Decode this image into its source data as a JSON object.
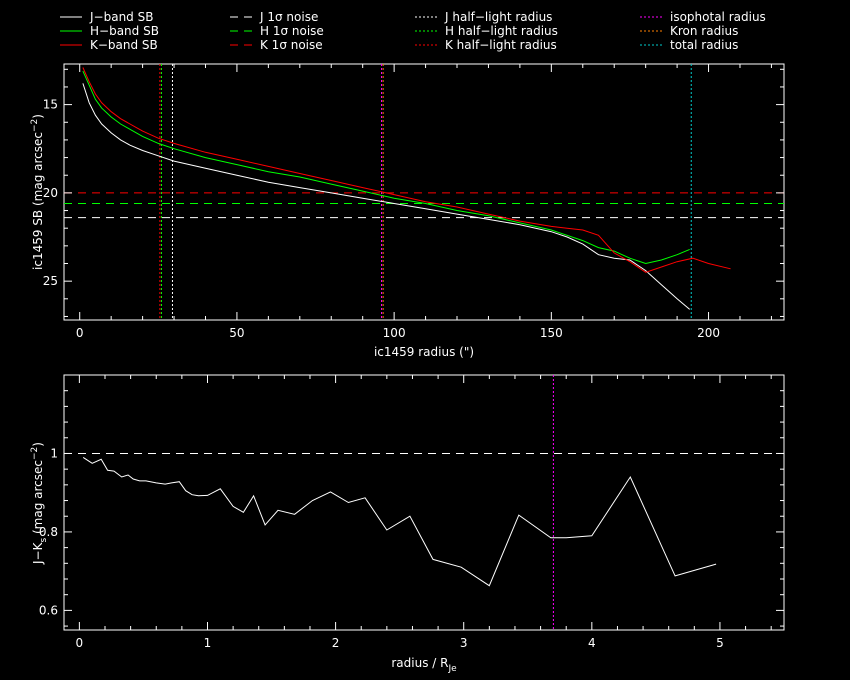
{
  "legend": [
    {
      "label": "J−band SB",
      "color": "#ffffff",
      "dash": "solid"
    },
    {
      "label": "H−band SB",
      "color": "#00ff00",
      "dash": "solid"
    },
    {
      "label": "K−band SB",
      "color": "#ff0000",
      "dash": "solid"
    },
    {
      "label": "J 1σ noise",
      "color": "#ffffff",
      "dash": "dashed"
    },
    {
      "label": "H 1σ noise",
      "color": "#00ff00",
      "dash": "dashed"
    },
    {
      "label": "K 1σ noise",
      "color": "#ff0000",
      "dash": "dashed"
    },
    {
      "label": "J half−light radius",
      "color": "#ffffff",
      "dash": "dotted"
    },
    {
      "label": "H half−light radius",
      "color": "#00ff00",
      "dash": "dotted"
    },
    {
      "label": "K half−light radius",
      "color": "#ff0000",
      "dash": "dotted"
    },
    {
      "label": "isophotal radius",
      "color": "#ff00ff",
      "dash": "dotted"
    },
    {
      "label": "Kron radius",
      "color": "#ff8000",
      "dash": "dotted"
    },
    {
      "label": "total radius",
      "color": "#00cccc",
      "dash": "dotted"
    }
  ],
  "chart_data": [
    {
      "type": "line",
      "xlabel": "ic1459 radius (\")",
      "ylabel_main": "ic1459 SB (mag arcsec",
      "ylabel_sup": "−2",
      "ylabel_tail": ")",
      "xlim": [
        -5,
        224
      ],
      "ylim": [
        27.2,
        12.7
      ],
      "xticks": [
        0,
        50,
        100,
        150,
        200
      ],
      "yticks": [
        15,
        20,
        25
      ],
      "series": [
        {
          "name": "J−band SB",
          "color": "#ffffff",
          "x": [
            1,
            3,
            5,
            7,
            10,
            13,
            16,
            20,
            25,
            30,
            40,
            50,
            60,
            70,
            80,
            90,
            100,
            110,
            120,
            130,
            140,
            150,
            155,
            160,
            165,
            170,
            175,
            180,
            185,
            190,
            194
          ],
          "y": [
            13.8,
            14.9,
            15.6,
            16.1,
            16.6,
            17.0,
            17.3,
            17.6,
            17.9,
            18.2,
            18.6,
            19.0,
            19.4,
            19.7,
            20.0,
            20.3,
            20.6,
            20.9,
            21.2,
            21.5,
            21.8,
            22.2,
            22.5,
            22.9,
            23.5,
            23.7,
            23.8,
            24.4,
            25.2,
            26.0,
            26.6
          ]
        },
        {
          "name": "H−band SB",
          "color": "#00ff00",
          "x": [
            1,
            3,
            5,
            7,
            10,
            13,
            16,
            20,
            25,
            30,
            40,
            50,
            60,
            70,
            80,
            90,
            100,
            110,
            120,
            130,
            140,
            150,
            155,
            160,
            165,
            170,
            175,
            180,
            185,
            190,
            194
          ],
          "y": [
            13.1,
            13.9,
            14.7,
            15.2,
            15.7,
            16.1,
            16.4,
            16.8,
            17.2,
            17.5,
            18.0,
            18.4,
            18.8,
            19.1,
            19.5,
            19.9,
            20.3,
            20.6,
            21.0,
            21.3,
            21.7,
            22.1,
            22.4,
            22.7,
            23.1,
            23.3,
            23.7,
            24.0,
            23.8,
            23.5,
            23.2
          ]
        },
        {
          "name": "K−band SB",
          "color": "#ff0000",
          "x": [
            1,
            3,
            5,
            7,
            10,
            13,
            16,
            20,
            25,
            30,
            40,
            50,
            60,
            70,
            80,
            90,
            100,
            110,
            120,
            130,
            140,
            150,
            155,
            160,
            165,
            170,
            175,
            180,
            185,
            190,
            195,
            200,
            207
          ],
          "y": [
            12.9,
            13.7,
            14.4,
            14.9,
            15.4,
            15.8,
            16.1,
            16.5,
            16.9,
            17.2,
            17.7,
            18.1,
            18.5,
            18.9,
            19.3,
            19.7,
            20.1,
            20.5,
            20.8,
            21.2,
            21.6,
            21.9,
            22.0,
            22.1,
            22.4,
            23.4,
            23.9,
            24.5,
            24.2,
            23.9,
            23.7,
            24.0,
            24.3
          ]
        }
      ],
      "hlines": [
        {
          "name": "J 1σ noise",
          "y": 21.4,
          "color": "#ffffff"
        },
        {
          "name": "H 1σ noise",
          "y": 20.6,
          "color": "#00ff00"
        },
        {
          "name": "K 1σ noise",
          "y": 20.0,
          "color": "#ff0000"
        }
      ],
      "vlines": [
        {
          "name": "J half−light radius",
          "x": 29.5,
          "color": "#ffffff"
        },
        {
          "name": "H half−light radius",
          "x": 26.0,
          "color": "#00ff00"
        },
        {
          "name": "K half−light radius",
          "x": 25.5,
          "color": "#ff0000"
        },
        {
          "name": "Kron radius",
          "x": 96.5,
          "color": "#ff8000"
        },
        {
          "name": "isophotal radius",
          "x": 96.0,
          "color": "#ff00ff"
        },
        {
          "name": "total radius",
          "x": 194.5,
          "color": "#00cccc"
        }
      ]
    },
    {
      "type": "line",
      "xlabel": "radius / R",
      "xlabel_sub": "Je",
      "ylabel_main": "J−K",
      "ylabel_sub": "s",
      "ylabel_tail": " (mag arcsec",
      "ylabel_sup": "−2",
      "ylabel_end": ")",
      "xlim": [
        -0.12,
        5.5
      ],
      "ylim": [
        0.55,
        1.2
      ],
      "xticks": [
        0,
        1,
        2,
        3,
        4,
        5
      ],
      "yticks": [
        0.6,
        0.8,
        1
      ],
      "series": [
        {
          "name": "",
          "color": "#ffffff",
          "x": [
            0.03,
            0.1,
            0.17,
            0.22,
            0.27,
            0.33,
            0.38,
            0.42,
            0.47,
            0.52,
            0.6,
            0.67,
            0.72,
            0.78,
            0.83,
            0.88,
            0.93,
            1.0,
            1.1,
            1.2,
            1.28,
            1.36,
            1.45,
            1.55,
            1.68,
            1.82,
            1.96,
            2.1,
            2.23,
            2.4,
            2.58,
            2.76,
            2.98,
            3.2,
            3.43,
            3.68,
            3.8,
            4.0,
            4.3,
            4.65,
            4.97
          ],
          "y": [
            0.99,
            0.975,
            0.985,
            0.957,
            0.955,
            0.94,
            0.945,
            0.935,
            0.93,
            0.93,
            0.925,
            0.922,
            0.925,
            0.928,
            0.905,
            0.895,
            0.892,
            0.893,
            0.91,
            0.865,
            0.85,
            0.892,
            0.818,
            0.855,
            0.845,
            0.88,
            0.902,
            0.875,
            0.887,
            0.805,
            0.84,
            0.73,
            0.71,
            0.663,
            0.843,
            0.785,
            0.785,
            0.79,
            0.94,
            0.688,
            0.718
          ]
        }
      ],
      "hlines": [
        {
          "name": "",
          "y": 1.0,
          "color": "#ffffff"
        }
      ],
      "vlines": [
        {
          "name": "isophotal radius",
          "x": 3.7,
          "color": "#ff00ff"
        }
      ]
    }
  ]
}
